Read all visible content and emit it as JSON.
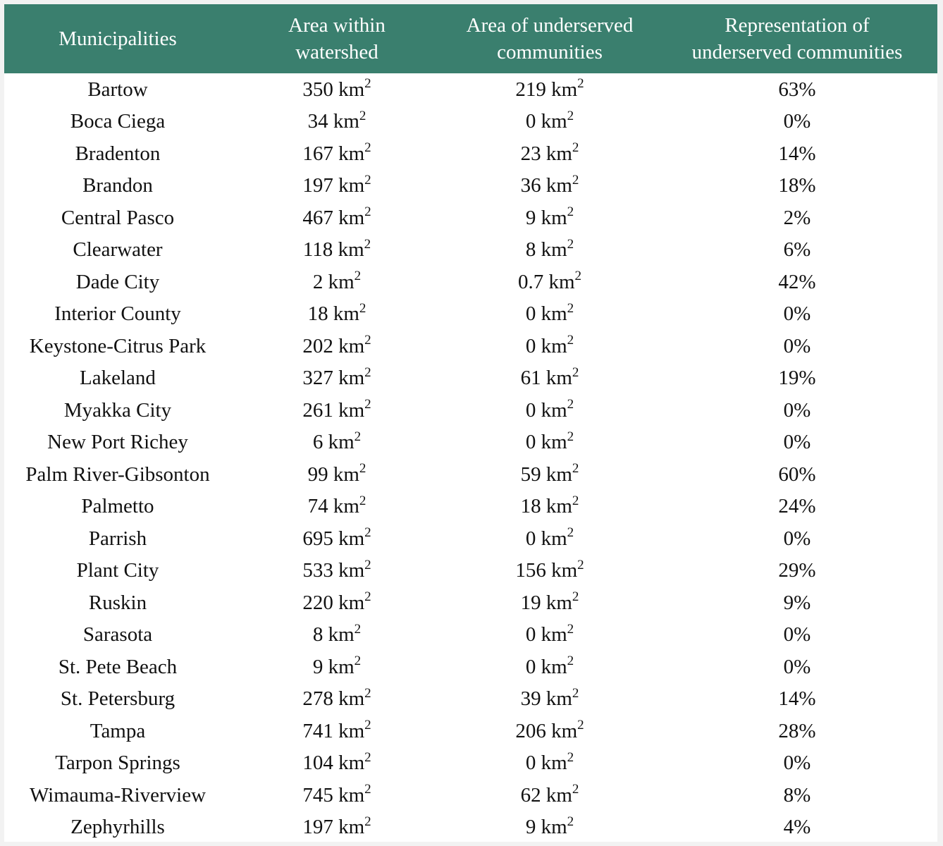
{
  "colors": {
    "header_bg": "#3a7f6e",
    "header_text": "#ffffff",
    "body_text": "#111111",
    "page_bg": "#ffffff"
  },
  "header": {
    "col1": "Municipalities",
    "col2_line1": "Area within",
    "col2_line2": "watershed",
    "col3_line1": "Area of underserved",
    "col3_line2": "communities",
    "col4_line1": "Representation of",
    "col4_line2": "underserved communities"
  },
  "unit": {
    "base": "km",
    "exponent": "2"
  },
  "rows": [
    {
      "municipality": "Bartow",
      "area_watershed": "350",
      "area_underserved": "219",
      "representation": "63%"
    },
    {
      "municipality": "Boca Ciega",
      "area_watershed": "34",
      "area_underserved": "0",
      "representation": "0%"
    },
    {
      "municipality": "Bradenton",
      "area_watershed": "167",
      "area_underserved": "23",
      "representation": "14%"
    },
    {
      "municipality": "Brandon",
      "area_watershed": "197",
      "area_underserved": "36",
      "representation": "18%"
    },
    {
      "municipality": "Central Pasco",
      "area_watershed": "467",
      "area_underserved": "9",
      "representation": "2%"
    },
    {
      "municipality": "Clearwater",
      "area_watershed": "118",
      "area_underserved": "8",
      "representation": "6%"
    },
    {
      "municipality": "Dade City",
      "area_watershed": "2",
      "area_underserved": "0.7",
      "representation": "42%"
    },
    {
      "municipality": "Interior County",
      "area_watershed": "18",
      "area_underserved": "0",
      "representation": "0%"
    },
    {
      "municipality": "Keystone-Citrus Park",
      "area_watershed": "202",
      "area_underserved": "0",
      "representation": "0%"
    },
    {
      "municipality": "Lakeland",
      "area_watershed": "327",
      "area_underserved": "61",
      "representation": "19%"
    },
    {
      "municipality": "Myakka City",
      "area_watershed": "261",
      "area_underserved": "0",
      "representation": "0%"
    },
    {
      "municipality": "New Port Richey",
      "area_watershed": "6",
      "area_underserved": "0",
      "representation": "0%"
    },
    {
      "municipality": "Palm River-Gibsonton",
      "area_watershed": "99",
      "area_underserved": "59",
      "representation": "60%"
    },
    {
      "municipality": "Palmetto",
      "area_watershed": "74",
      "area_underserved": "18",
      "representation": "24%"
    },
    {
      "municipality": "Parrish",
      "area_watershed": "695",
      "area_underserved": "0",
      "representation": "0%"
    },
    {
      "municipality": "Plant City",
      "area_watershed": "533",
      "area_underserved": "156",
      "representation": "29%"
    },
    {
      "municipality": "Ruskin",
      "area_watershed": "220",
      "area_underserved": "19",
      "representation": "9%"
    },
    {
      "municipality": "Sarasota",
      "area_watershed": "8",
      "area_underserved": "0",
      "representation": "0%"
    },
    {
      "municipality": "St. Pete Beach",
      "area_watershed": "9",
      "area_underserved": "0",
      "representation": "0%"
    },
    {
      "municipality": "St. Petersburg",
      "area_watershed": "278",
      "area_underserved": "39",
      "representation": "14%"
    },
    {
      "municipality": "Tampa",
      "area_watershed": "741",
      "area_underserved": "206",
      "representation": "28%"
    },
    {
      "municipality": "Tarpon Springs",
      "area_watershed": "104",
      "area_underserved": "0",
      "representation": "0%"
    },
    {
      "municipality": "Wimauma-Riverview",
      "area_watershed": "745",
      "area_underserved": "62",
      "representation": "8%"
    },
    {
      "municipality": "Zephyrhills",
      "area_watershed": "197",
      "area_underserved": "9",
      "representation": "4%"
    }
  ]
}
